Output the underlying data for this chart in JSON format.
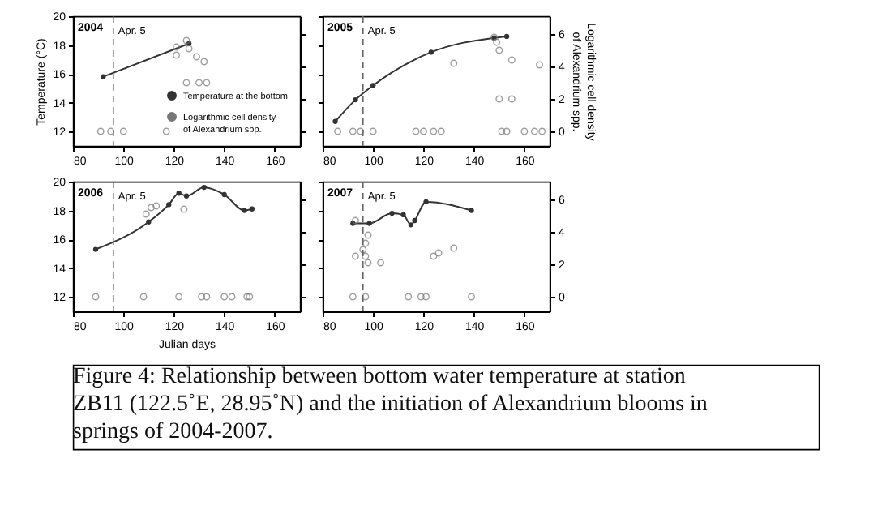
{
  "chart_data": [
    {
      "type": "line",
      "title": "2004",
      "ylabel": "Temperature (°C)",
      "xlim": [
        80,
        170
      ],
      "xticks": [
        80,
        100,
        120,
        140,
        160
      ],
      "ylim": [
        11,
        20
      ],
      "yticks": [
        12,
        14,
        16,
        18,
        20
      ],
      "y2lim": [
        -0.9,
        7.1
      ],
      "tick_labels": [
        "x",
        "y"
      ],
      "legend": "bottom right",
      "marker": "circle",
      "ref_lines": [
        {
          "axis": "x",
          "value": 96,
          "label": "Apr. 5",
          "line_style": "dashed",
          "color": "#666666"
        }
      ],
      "series": [
        {
          "name": "Temperature at the bottom",
          "type": "line",
          "color": "#333333",
          "x": [
            92,
            126
          ],
          "values": [
            15.8,
            18.1
          ]
        },
        {
          "name": "Logarithmic cell density of Alexandrium spp.",
          "type": "scatter",
          "axis": "y2",
          "color": "#777777",
          "x": [
            91,
            95,
            100,
            117,
            125,
            121,
            121,
            126,
            129,
            132,
            125,
            130,
            133
          ],
          "values": [
            0,
            0,
            0,
            0,
            5.6,
            5.2,
            4.7,
            5.1,
            4.6,
            4.3,
            3.0,
            3.0,
            3.0
          ]
        }
      ]
    },
    {
      "type": "line",
      "title": "2005",
      "y2label": "Logarithmic cell density of Alexandrium spp.",
      "xlim": [
        80,
        170
      ],
      "xticks": [
        80,
        100,
        120,
        140,
        160
      ],
      "ylim": [
        11,
        20
      ],
      "y2lim": [
        -0.9,
        7.1
      ],
      "y2ticks": [
        0,
        2,
        4,
        6
      ],
      "tick_labels": [
        "x",
        "y2"
      ],
      "marker": "circle",
      "ref_lines": [
        {
          "axis": "x",
          "value": 96,
          "label": "Apr. 5",
          "line_style": "dashed",
          "color": "#666666"
        }
      ],
      "series": [
        {
          "type": "line",
          "color": "#333333",
          "x": [
            85,
            93,
            100,
            123,
            148,
            153
          ],
          "values": [
            12.7,
            14.2,
            15.2,
            17.5,
            18.5,
            18.6
          ]
        },
        {
          "type": "scatter",
          "axis": "y2",
          "color": "#777777",
          "x": [
            86,
            92,
            95,
            100,
            117,
            120,
            124,
            127,
            151,
            153,
            160,
            164,
            167,
            132,
            155,
            166,
            150,
            155,
            148,
            149,
            150
          ],
          "values": [
            0,
            0,
            0,
            0,
            0,
            0,
            0,
            0,
            0,
            0,
            0,
            0,
            0,
            4.2,
            4.4,
            4.1,
            2.0,
            2.0,
            5.8,
            5.5,
            5.0
          ]
        }
      ]
    },
    {
      "type": "line",
      "title": "2006",
      "xlabel": "Julian days",
      "xlim": [
        80,
        170
      ],
      "xticks": [
        80,
        100,
        120,
        140,
        160
      ],
      "ylim": [
        11,
        20
      ],
      "yticks": [
        12,
        14,
        16,
        18,
        20
      ],
      "y2lim": [
        -0.9,
        7.1
      ],
      "tick_labels": [
        "x",
        "y"
      ],
      "marker": "circle",
      "ref_lines": [
        {
          "axis": "x",
          "value": 96,
          "label": "Apr. 5",
          "line_style": "dashed",
          "color": "#666666"
        }
      ],
      "series": [
        {
          "type": "line",
          "color": "#333333",
          "x": [
            89,
            110,
            118,
            122,
            125,
            132,
            140,
            148,
            151
          ],
          "values": [
            15.3,
            17.2,
            18.4,
            19.2,
            19.0,
            19.6,
            19.1,
            18.0,
            18.1
          ]
        },
        {
          "type": "scatter",
          "axis": "y2",
          "color": "#777777",
          "x": [
            89,
            108,
            122,
            131,
            133,
            140,
            143,
            149,
            150,
            109,
            111,
            113,
            124
          ],
          "values": [
            0,
            0,
            0,
            0,
            0,
            0,
            0,
            0,
            0,
            5.1,
            5.5,
            5.6,
            5.4
          ]
        }
      ]
    },
    {
      "type": "line",
      "title": "2007",
      "xlim": [
        80,
        170
      ],
      "xticks": [
        80,
        100,
        120,
        140,
        160
      ],
      "ylim": [
        11,
        20
      ],
      "y2lim": [
        -0.9,
        7.1
      ],
      "y2ticks": [
        0,
        2,
        4,
        6
      ],
      "tick_labels": [
        "x",
        "y2"
      ],
      "marker": "circle",
      "ref_lines": [
        {
          "axis": "x",
          "value": 96,
          "label": "Apr. 5",
          "line_style": "dashed",
          "color": "#666666"
        }
      ],
      "annotations": [
        "Figure 4: Relationship between bottom water temperature at station ZB11 (122.5˚E, 28.95˚N) and the initiation of Alexandrium blooms in springs of 2004-2007."
      ],
      "series": [
        {
          "type": "line",
          "color": "#333333",
          "x": [
            92,
            98.5,
            107.5,
            112,
            115,
            116.5,
            121,
            139
          ],
          "values": [
            17.1,
            17.1,
            17.8,
            17.7,
            17.0,
            17.3,
            18.6,
            18.0
          ]
        },
        {
          "type": "scatter",
          "axis": "y2",
          "color": "#777777",
          "x": [
            92,
            97,
            114,
            119,
            121,
            139,
            93,
            98,
            97,
            96,
            97,
            93,
            103,
            124,
            126,
            132,
            98
          ],
          "values": [
            0,
            0,
            0,
            0,
            0,
            0,
            4.7,
            3.8,
            3.3,
            2.9,
            2.5,
            2.5,
            2.1,
            2.5,
            2.7,
            3.0,
            2.1
          ]
        }
      ]
    }
  ]
}
